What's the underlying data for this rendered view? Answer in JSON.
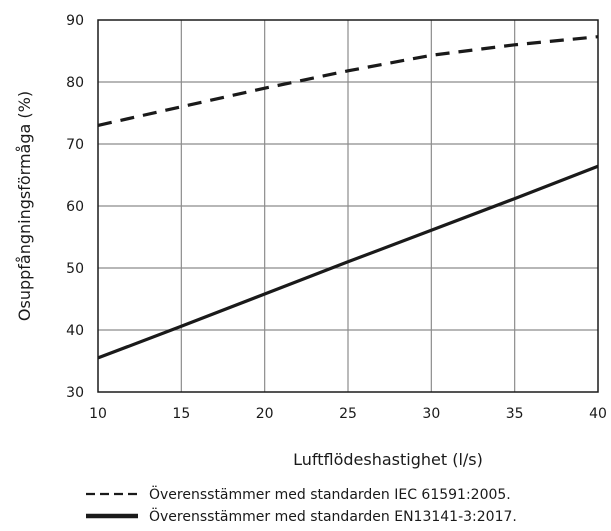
{
  "chart_data": {
    "type": "line",
    "xlabel": "Luftflödeshastighet (l/s)",
    "ylabel": "Osuppfångningsförmåga (%)",
    "xlim": [
      10,
      40
    ],
    "ylim": [
      30,
      90
    ],
    "x_ticks": [
      10,
      15,
      20,
      25,
      30,
      35,
      40
    ],
    "y_ticks": [
      30,
      40,
      50,
      60,
      70,
      80,
      90
    ],
    "grid": true,
    "legend_position": "bottom",
    "series": [
      {
        "name": "Överensstämmer med standarden IEC 61591:2005.",
        "style": "dashed",
        "color": "#1a1a1a",
        "x": [
          10,
          15,
          20,
          25,
          30,
          35,
          40
        ],
        "y": [
          73,
          76,
          79,
          81.8,
          84.3,
          86,
          87.3
        ]
      },
      {
        "name": "Överensstämmer med standarden EN13141-3:2017.",
        "style": "solid",
        "color": "#1a1a1a",
        "x": [
          10,
          15,
          20,
          25,
          30,
          35,
          40
        ],
        "y": [
          35.5,
          40.6,
          45.8,
          51,
          56.1,
          61.2,
          66.4
        ]
      }
    ]
  }
}
